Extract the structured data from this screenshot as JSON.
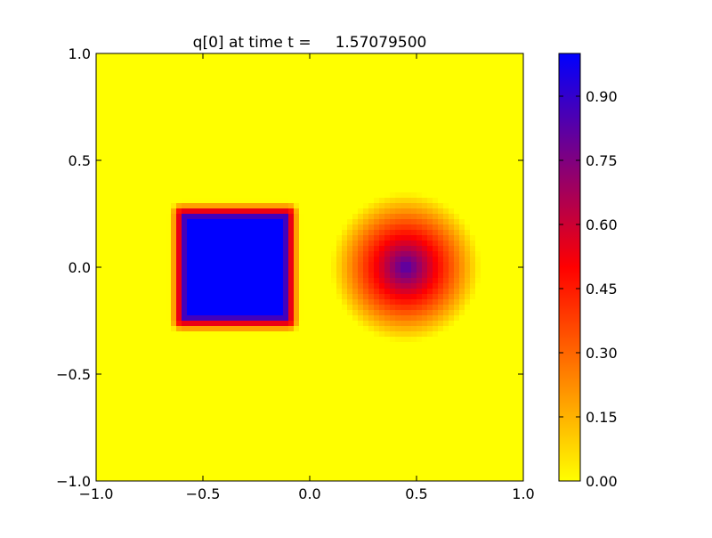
{
  "chart_data": {
    "type": "heatmap",
    "title": "q[0] at time t =     1.57079500",
    "xlabel": "",
    "ylabel": "",
    "xlim": [
      -1.0,
      1.0
    ],
    "ylim": [
      -1.0,
      1.0
    ],
    "x_ticks": [
      -1.0,
      -0.5,
      0.0,
      0.5,
      1.0
    ],
    "x_tick_labels": [
      "−1.0",
      "−0.5",
      "0.0",
      "0.5",
      "1.0"
    ],
    "y_ticks": [
      1.0,
      0.5,
      0.0,
      -0.5,
      -1.0
    ],
    "y_tick_labels": [
      "1.0",
      "0.5",
      "0.0",
      "−0.5",
      "−1.0"
    ],
    "grid": false,
    "grid_resolution": 80,
    "colormap": [
      "#ffff00",
      "#ff0000",
      "#0000ff"
    ],
    "colorbar": {
      "range": [
        0.0,
        1.0
      ],
      "ticks": [
        0.0,
        0.15,
        0.3,
        0.45,
        0.6,
        0.75,
        0.9
      ],
      "tick_labels": [
        "0.00",
        "0.15",
        "0.30",
        "0.45",
        "0.60",
        "0.75",
        "0.90"
      ]
    },
    "features": [
      {
        "shape": "square",
        "center": [
          -0.35,
          0.0
        ],
        "half_width": 0.25,
        "peak_value": 1.0
      },
      {
        "shape": "cone",
        "center": [
          0.45,
          0.0
        ],
        "radius": 0.35,
        "peak_value": 0.85
      }
    ]
  }
}
